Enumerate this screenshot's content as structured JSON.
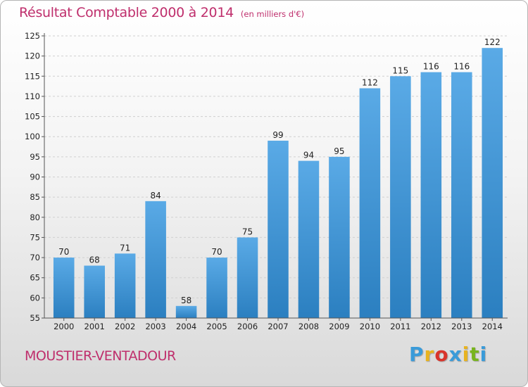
{
  "header": {
    "title": "Résultat Comptable 2000 à 2014",
    "unit_note": "(en milliers d'€)"
  },
  "footer": {
    "place_name": "MOUSTIER-VENTADOUR",
    "logo_text": "Proxiti",
    "logo_colors": [
      "#3a9bd9",
      "#e8b320",
      "#d9342b",
      "#3a9bd9",
      "#e8b320",
      "#78b41e",
      "#3a9bd9"
    ]
  },
  "chart_data": {
    "type": "bar",
    "title": "Résultat Comptable 2000 à 2014",
    "subtitle": "(en milliers d'€)",
    "xlabel": "",
    "ylabel": "",
    "categories": [
      "2000",
      "2001",
      "2002",
      "2003",
      "2004",
      "2005",
      "2006",
      "2007",
      "2008",
      "2009",
      "2010",
      "2011",
      "2012",
      "2013",
      "2014"
    ],
    "values": [
      70,
      68,
      71,
      84,
      58,
      70,
      75,
      99,
      94,
      95,
      112,
      115,
      116,
      116,
      122
    ],
    "ylim": [
      55,
      125
    ],
    "yticks": [
      55,
      60,
      65,
      70,
      75,
      80,
      85,
      90,
      95,
      100,
      105,
      110,
      115,
      120,
      125
    ],
    "grid": true,
    "bar_color_top": "#5aaae6",
    "bar_color_bottom": "#2b7fc0"
  }
}
